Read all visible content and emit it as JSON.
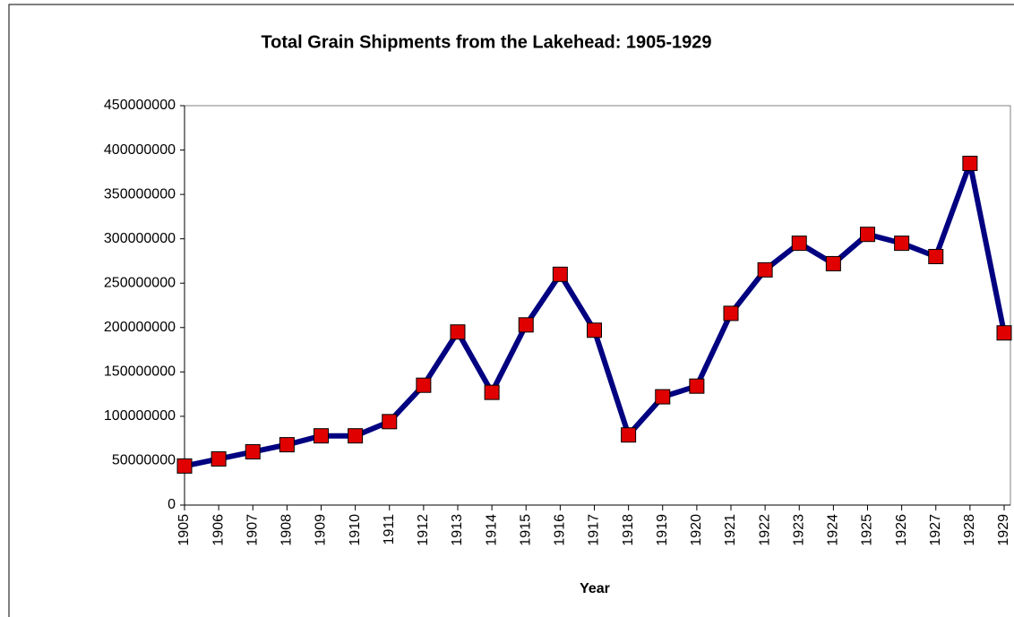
{
  "chart_data": {
    "type": "line",
    "title": "Total Grain Shipments from the Lakehead: 1905-1929",
    "x_label": "Year",
    "categories": [
      "1905",
      "1906",
      "1907",
      "1908",
      "1909",
      "1910",
      "1911",
      "1912",
      "1913",
      "1914",
      "1915",
      "1916",
      "1917",
      "1918",
      "1919",
      "1920",
      "1921",
      "1922",
      "1923",
      "1924",
      "1925",
      "1926",
      "1927",
      "1928",
      "1929"
    ],
    "values": [
      44000000,
      52000000,
      60000000,
      68000000,
      78000000,
      78000000,
      94000000,
      135000000,
      195000000,
      127000000,
      203000000,
      260000000,
      197000000,
      79000000,
      122000000,
      134000000,
      216000000,
      265000000,
      295000000,
      272000000,
      305000000,
      295000000,
      280000000,
      385000000,
      194000000
    ],
    "color": "#000080",
    "marker_color": "#e00000",
    "ylim": [
      0,
      450000000
    ],
    "yticks": [
      0,
      50000000,
      100000000,
      150000000,
      200000000,
      250000000,
      300000000,
      350000000,
      400000000,
      450000000
    ],
    "grid": false
  }
}
